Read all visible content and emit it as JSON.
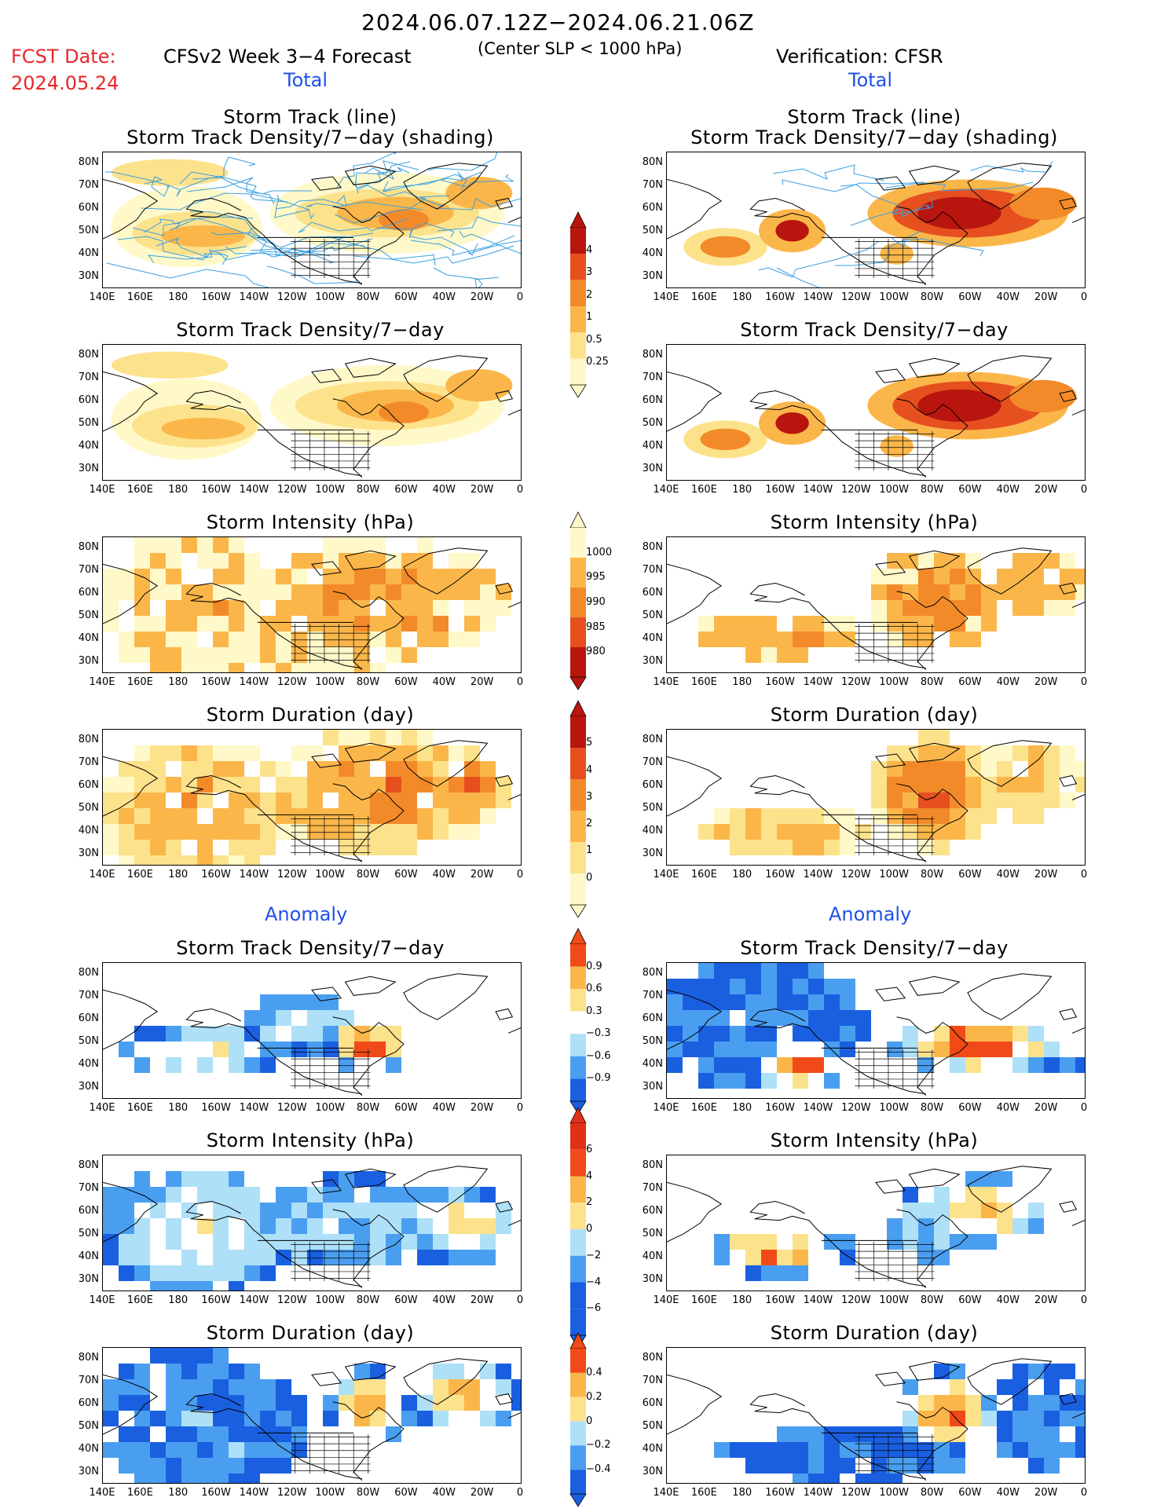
{
  "header": {
    "date_range": "2024.06.07.12Z−2024.06.21.06Z",
    "criterion": "(Center SLP < 1000 hPa)",
    "fcst_label": "FCST Date:",
    "fcst_date": "2024.05.24",
    "left_title": "CFSv2 Week 3−4 Forecast",
    "right_title": "Verification: CFSR"
  },
  "sections": {
    "total": "Total",
    "anomaly": "Anomaly"
  },
  "panel_titles": {
    "track_line": "Storm Track (line)",
    "track_density_shading": "Storm Track Density/7−day (shading)",
    "track_density": "Storm Track Density/7−day",
    "intensity": "Storm Intensity (hPa)",
    "duration": "Storm Duration (day)"
  },
  "axes": {
    "lat_labels": [
      "80N",
      "70N",
      "60N",
      "50N",
      "40N",
      "30N"
    ],
    "lon_labels": [
      "140E",
      "160E",
      "180",
      "160W",
      "140W",
      "120W",
      "100W",
      "80W",
      "60W",
      "40W",
      "20W",
      "0"
    ]
  },
  "colorbars": {
    "density": [
      "4",
      "3",
      "2",
      "1",
      "0.5",
      "0.25"
    ],
    "intensity": [
      "1000",
      "995",
      "990",
      "985",
      "980"
    ],
    "duration": [
      "5",
      "4",
      "3",
      "2",
      "1",
      "0"
    ],
    "density_anom": [
      "0.9",
      "0.6",
      "0.3",
      "−0.3",
      "−0.6",
      "−0.9"
    ],
    "intensity_anom": [
      "6",
      "4",
      "2",
      "0",
      "−2",
      "−4",
      "−6"
    ],
    "duration_anom": [
      "0.4",
      "0.2",
      "0",
      "−0.2",
      "−0.4"
    ]
  },
  "colors": {
    "warm_scale": [
      "#fff8c8",
      "#fde28c",
      "#fbb64a",
      "#f38a2a",
      "#e6501f",
      "#b8150f"
    ],
    "intensity_scale": [
      "#fff8c8",
      "#fbb64a",
      "#f38a2a",
      "#e6501f",
      "#b8150f"
    ],
    "anom_scale": [
      "#1a5fe0",
      "#4a9ef0",
      "#aee0f8",
      "#ffffff",
      "#fde28c",
      "#fbb64a",
      "#f04a18"
    ],
    "track_line": "#3aa0e0"
  }
}
